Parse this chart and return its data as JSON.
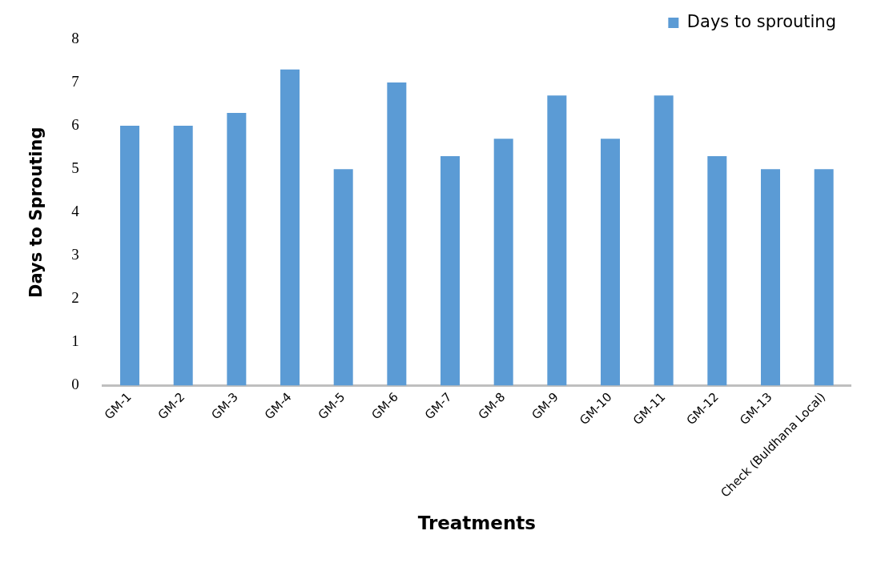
{
  "chart_data": {
    "type": "bar",
    "xlabel": "Treatments",
    "ylabel": "Days to Sprouting",
    "categories": [
      "GM-1",
      "GM-2",
      "GM-3",
      "GM-4",
      "GM-5",
      "GM-6",
      "GM-7",
      "GM-8",
      "GM-9",
      "GM-10",
      "GM-11",
      "GM-12",
      "GM-13",
      "Check (Buldhana Local)"
    ],
    "series": [
      {
        "name": "Days to sprouting",
        "color": "#5b9bd5",
        "values": [
          6,
          6,
          6.3,
          7.3,
          5,
          7,
          5.3,
          5.7,
          6.7,
          5.7,
          6.7,
          5.3,
          5,
          5
        ]
      }
    ],
    "ylim": [
      0,
      8
    ],
    "yticks": [
      0,
      1,
      2,
      3,
      4,
      5,
      6,
      7,
      8
    ],
    "grid": false,
    "legend": "top right"
  }
}
